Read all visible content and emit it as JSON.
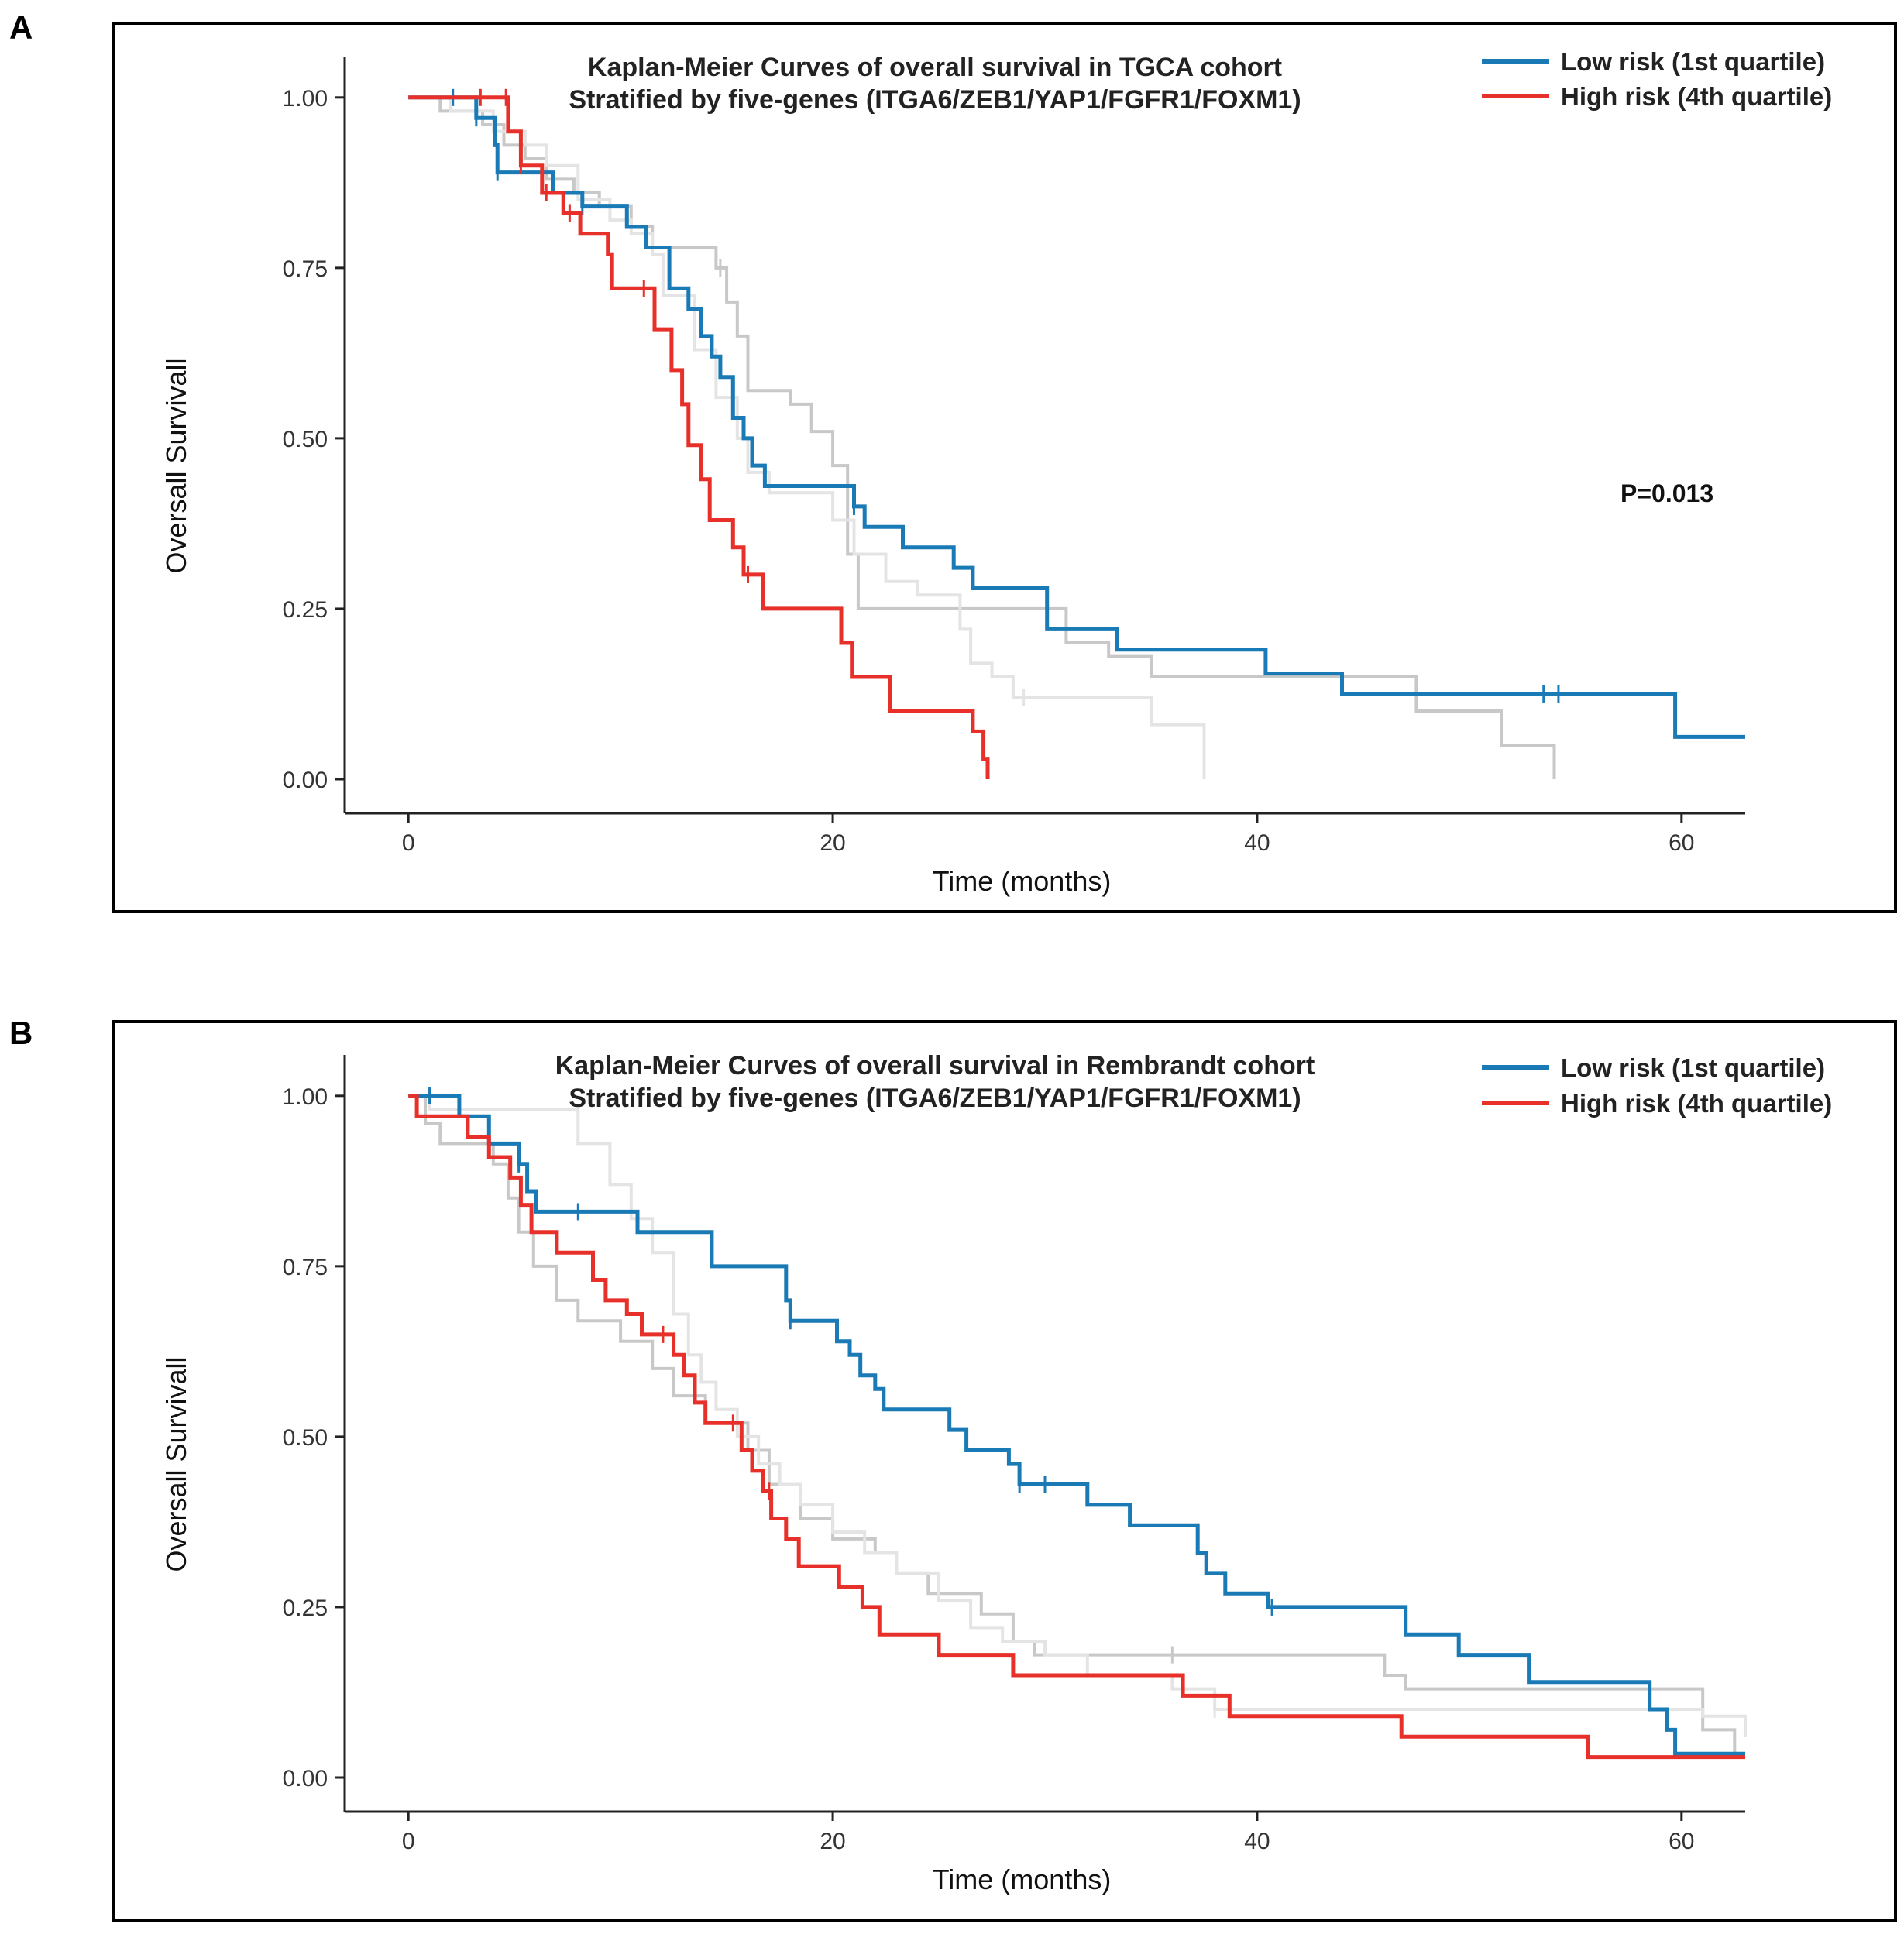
{
  "panels": [
    {
      "letter": "A",
      "title_line1": "Kaplan-Meier Curves of overall survival in TGCA  cohort",
      "title_line2": "Stratified by five-genes (ITGA6/ZEB1/YAP1/FGFR1/FOXM1)",
      "legend": [
        {
          "label": "Low risk (1st quartile)",
          "color": "#1a7ab5"
        },
        {
          "label": "High risk (4th quartile)",
          "color": "#e8302a"
        }
      ],
      "pvalue": "P=0.013"
    },
    {
      "letter": "B",
      "title_line1": "Kaplan-Meier Curves of overall survival in Rembrandt cohort",
      "title_line2": "Stratified by five-genes (ITGA6/ZEB1/YAP1/FGFR1/FOXM1)",
      "legend": [
        {
          "label": "Low risk (1st quartile)",
          "color": "#1a7ab5"
        },
        {
          "label": "High risk (4th quartile)",
          "color": "#e8302a"
        }
      ],
      "pvalue": ""
    }
  ],
  "chart_data": [
    {
      "type": "line",
      "subtype": "kaplan-meier step",
      "title": "Kaplan-Meier Curves of overall survival in TGCA  cohort / Stratified by five-genes (ITGA6/ZEB1/YAP1/FGFR1/FOXM1)",
      "xlabel": "Time (months)",
      "ylabel": "Oversall Survivall",
      "xlim": [
        -3,
        63
      ],
      "ylim": [
        -0.05,
        1.06
      ],
      "xticks": [
        "0",
        "20",
        "40",
        "60"
      ],
      "xtick_values": [
        0,
        20,
        40,
        60
      ],
      "yticks": [
        "0.00",
        "0.25",
        "0.50",
        "0.75",
        "1.00"
      ],
      "ytick_values": [
        0,
        0.25,
        0.5,
        0.75,
        1.0
      ],
      "annotation": "P=0.013",
      "series": [
        {
          "name": "Q2",
          "color": "#c8c8c8",
          "width": 4,
          "points": [
            [
              0,
              1
            ],
            [
              1.5,
              0.98
            ],
            [
              3.5,
              0.96
            ],
            [
              4.5,
              0.93
            ],
            [
              5.5,
              0.91
            ],
            [
              6.5,
              0.88
            ],
            [
              7.8,
              0.86
            ],
            [
              9,
              0.84
            ],
            [
              10.5,
              0.81
            ],
            [
              11.5,
              0.78
            ],
            [
              13,
              0.78
            ],
            [
              14.5,
              0.75
            ],
            [
              15,
              0.7
            ],
            [
              15.5,
              0.65
            ],
            [
              16,
              0.57
            ],
            [
              18,
              0.55
            ],
            [
              19,
              0.51
            ],
            [
              20,
              0.46
            ],
            [
              20.7,
              0.33
            ],
            [
              21.2,
              0.25
            ],
            [
              30,
              0.25
            ],
            [
              31,
              0.2
            ],
            [
              33,
              0.18
            ],
            [
              35,
              0.15
            ],
            [
              47.5,
              0.1
            ],
            [
              51.5,
              0.05
            ],
            [
              54,
              0
            ]
          ],
          "censor_x": [
            14.7
          ]
        },
        {
          "name": "Q3",
          "color": "#e4e4e4",
          "width": 4,
          "points": [
            [
              0,
              1
            ],
            [
              2,
              0.98
            ],
            [
              4,
              0.95
            ],
            [
              5.5,
              0.93
            ],
            [
              6.5,
              0.9
            ],
            [
              8,
              0.85
            ],
            [
              9.5,
              0.82
            ],
            [
              10.5,
              0.8
            ],
            [
              11.5,
              0.77
            ],
            [
              12,
              0.71
            ],
            [
              13.5,
              0.63
            ],
            [
              14.5,
              0.56
            ],
            [
              15.5,
              0.5
            ],
            [
              16,
              0.45
            ],
            [
              17,
              0.42
            ],
            [
              20,
              0.38
            ],
            [
              21,
              0.33
            ],
            [
              22.5,
              0.29
            ],
            [
              24,
              0.27
            ],
            [
              26,
              0.22
            ],
            [
              26.5,
              0.17
            ],
            [
              27.5,
              0.15
            ],
            [
              28.5,
              0.12
            ],
            [
              35,
              0.08
            ],
            [
              37,
              0.08
            ],
            [
              37.5,
              0
            ]
          ],
          "censor_x": [
            29
          ]
        },
        {
          "name": "Low risk (1st quartile)",
          "color": "#1a7ab5",
          "width": 5,
          "points": [
            [
              0,
              1
            ],
            [
              3.2,
              0.97
            ],
            [
              4.1,
              0.93
            ],
            [
              4.2,
              0.89
            ],
            [
              6.8,
              0.86
            ],
            [
              8.2,
              0.84
            ],
            [
              10.3,
              0.81
            ],
            [
              11.2,
              0.78
            ],
            [
              12.3,
              0.72
            ],
            [
              13.2,
              0.69
            ],
            [
              13.8,
              0.65
            ],
            [
              14.3,
              0.62
            ],
            [
              14.7,
              0.59
            ],
            [
              15.3,
              0.53
            ],
            [
              15.8,
              0.5
            ],
            [
              16.2,
              0.46
            ],
            [
              16.8,
              0.43
            ],
            [
              21,
              0.4
            ],
            [
              21.5,
              0.37
            ],
            [
              23.3,
              0.34
            ],
            [
              25.7,
              0.31
            ],
            [
              26.6,
              0.28
            ],
            [
              30.1,
              0.22
            ],
            [
              33.4,
              0.19
            ],
            [
              40.4,
              0.155
            ],
            [
              44,
              0.125
            ],
            [
              59.7,
              0.062
            ],
            [
              63,
              0.062
            ]
          ],
          "censor_x": [
            2.1,
            3.2,
            4.2,
            8.2,
            21,
            53.5,
            54.2
          ]
        },
        {
          "name": "High risk (4th quartile)",
          "color": "#e8302a",
          "width": 5,
          "points": [
            [
              0,
              1
            ],
            [
              4.7,
              0.95
            ],
            [
              5.3,
              0.9
            ],
            [
              6.3,
              0.86
            ],
            [
              7.3,
              0.83
            ],
            [
              8.1,
              0.8
            ],
            [
              9.4,
              0.77
            ],
            [
              9.6,
              0.72
            ],
            [
              11.6,
              0.66
            ],
            [
              12.4,
              0.6
            ],
            [
              12.9,
              0.55
            ],
            [
              13.2,
              0.49
            ],
            [
              13.8,
              0.44
            ],
            [
              14.2,
              0.38
            ],
            [
              15.3,
              0.34
            ],
            [
              15.8,
              0.3
            ],
            [
              16.7,
              0.25
            ],
            [
              20.4,
              0.2
            ],
            [
              20.9,
              0.15
            ],
            [
              22.7,
              0.1
            ],
            [
              26.6,
              0.07
            ],
            [
              27.1,
              0.03
            ],
            [
              27.3,
              0
            ]
          ],
          "censor_x": [
            3.4,
            4.6,
            5.3,
            6.5,
            7.6,
            11.1,
            16
          ]
        }
      ]
    },
    {
      "type": "line",
      "subtype": "kaplan-meier step",
      "title": "Kaplan-Meier Curves of overall survival in Rembrandt cohort / Stratified by five-genes (ITGA6/ZEB1/YAP1/FGFR1/FOXM1)",
      "xlabel": "Time (months)",
      "ylabel": "Oversall Survivall",
      "xlim": [
        -3,
        63
      ],
      "ylim": [
        -0.05,
        1.06
      ],
      "xticks": [
        "0",
        "20",
        "40",
        "60"
      ],
      "xtick_values": [
        0,
        20,
        40,
        60
      ],
      "yticks": [
        "0.00",
        "0.25",
        "0.50",
        "0.75",
        "1.00"
      ],
      "ytick_values": [
        0,
        0.25,
        0.5,
        0.75,
        1.0
      ],
      "annotation": "",
      "series": [
        {
          "name": "Q2",
          "color": "#c8c8c8",
          "width": 4,
          "points": [
            [
              0,
              1
            ],
            [
              0.8,
              0.96
            ],
            [
              1.5,
              0.93
            ],
            [
              4,
              0.9
            ],
            [
              4.7,
              0.85
            ],
            [
              5.2,
              0.8
            ],
            [
              5.9,
              0.75
            ],
            [
              7,
              0.7
            ],
            [
              8,
              0.67
            ],
            [
              10,
              0.64
            ],
            [
              11.5,
              0.6
            ],
            [
              12.5,
              0.56
            ],
            [
              14,
              0.52
            ],
            [
              16,
              0.48
            ],
            [
              17,
              0.43
            ],
            [
              18.5,
              0.38
            ],
            [
              20,
              0.35
            ],
            [
              22,
              0.33
            ],
            [
              23,
              0.3
            ],
            [
              24.5,
              0.27
            ],
            [
              27,
              0.24
            ],
            [
              28.5,
              0.2
            ],
            [
              29.5,
              0.18
            ],
            [
              46,
              0.15
            ],
            [
              47,
              0.13
            ],
            [
              61,
              0.07
            ],
            [
              62.5,
              0.03
            ]
          ],
          "censor_x": [
            36
          ]
        },
        {
          "name": "Q3",
          "color": "#e4e4e4",
          "width": 4,
          "points": [
            [
              0,
              1
            ],
            [
              1,
              0.98
            ],
            [
              7.5,
              0.98
            ],
            [
              8,
              0.93
            ],
            [
              9.5,
              0.87
            ],
            [
              10.5,
              0.82
            ],
            [
              11.5,
              0.77
            ],
            [
              12.5,
              0.68
            ],
            [
              13.2,
              0.62
            ],
            [
              13.8,
              0.58
            ],
            [
              14.5,
              0.54
            ],
            [
              15.5,
              0.5
            ],
            [
              16.5,
              0.46
            ],
            [
              17.5,
              0.43
            ],
            [
              18.5,
              0.4
            ],
            [
              20,
              0.36
            ],
            [
              21.5,
              0.33
            ],
            [
              23,
              0.3
            ],
            [
              25,
              0.26
            ],
            [
              26.5,
              0.22
            ],
            [
              28,
              0.2
            ],
            [
              30,
              0.18
            ],
            [
              32,
              0.15
            ],
            [
              36,
              0.13
            ],
            [
              38,
              0.1
            ],
            [
              61,
              0.09
            ],
            [
              63,
              0.06
            ]
          ],
          "censor_x": [
            38
          ]
        },
        {
          "name": "Low risk (1st quartile)",
          "color": "#1a7ab5",
          "width": 5,
          "points": [
            [
              0,
              1
            ],
            [
              2.4,
              0.97
            ],
            [
              3.8,
              0.93
            ],
            [
              5.2,
              0.9
            ],
            [
              5.6,
              0.86
            ],
            [
              6,
              0.83
            ],
            [
              10.8,
              0.8
            ],
            [
              14.3,
              0.75
            ],
            [
              17.8,
              0.7
            ],
            [
              18,
              0.67
            ],
            [
              20.2,
              0.64
            ],
            [
              20.8,
              0.62
            ],
            [
              21.3,
              0.59
            ],
            [
              22,
              0.57
            ],
            [
              22.4,
              0.54
            ],
            [
              25.5,
              0.51
            ],
            [
              26.3,
              0.48
            ],
            [
              28.3,
              0.46
            ],
            [
              28.8,
              0.43
            ],
            [
              32,
              0.4
            ],
            [
              34,
              0.37
            ],
            [
              37.2,
              0.33
            ],
            [
              37.6,
              0.3
            ],
            [
              38.5,
              0.27
            ],
            [
              40.5,
              0.25
            ],
            [
              47,
              0.21
            ],
            [
              49.5,
              0.18
            ],
            [
              52.8,
              0.14
            ],
            [
              58.5,
              0.1
            ],
            [
              59.3,
              0.07
            ],
            [
              59.7,
              0.035
            ],
            [
              63,
              0.035
            ]
          ],
          "censor_x": [
            1,
            3.8,
            5.2,
            8,
            18,
            28.8,
            30,
            40.7
          ]
        },
        {
          "name": "High risk (4th quartile)",
          "color": "#e8302a",
          "width": 5,
          "points": [
            [
              0,
              1
            ],
            [
              0.4,
              0.97
            ],
            [
              2.8,
              0.94
            ],
            [
              3.8,
              0.91
            ],
            [
              4.8,
              0.88
            ],
            [
              5.3,
              0.84
            ],
            [
              5.8,
              0.8
            ],
            [
              7,
              0.77
            ],
            [
              8.7,
              0.73
            ],
            [
              9.3,
              0.7
            ],
            [
              10.3,
              0.68
            ],
            [
              11,
              0.65
            ],
            [
              12.5,
              0.62
            ],
            [
              13,
              0.59
            ],
            [
              13.5,
              0.55
            ],
            [
              14,
              0.52
            ],
            [
              15.7,
              0.48
            ],
            [
              16.2,
              0.45
            ],
            [
              16.7,
              0.42
            ],
            [
              17.1,
              0.38
            ],
            [
              17.8,
              0.35
            ],
            [
              18.4,
              0.31
            ],
            [
              20.3,
              0.28
            ],
            [
              21.4,
              0.25
            ],
            [
              22.2,
              0.21
            ],
            [
              25,
              0.18
            ],
            [
              28.5,
              0.15
            ],
            [
              36.5,
              0.12
            ],
            [
              38.7,
              0.09
            ],
            [
              46.8,
              0.06
            ],
            [
              55.6,
              0.03
            ],
            [
              63,
              0.03
            ]
          ],
          "censor_x": [
            12,
            15.3,
            17
          ]
        }
      ]
    }
  ]
}
